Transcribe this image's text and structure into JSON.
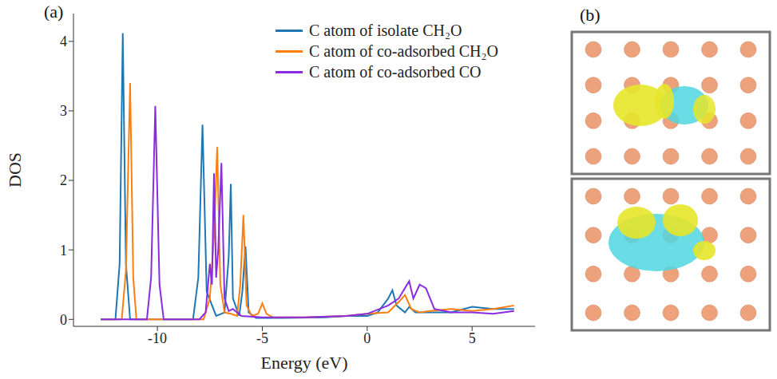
{
  "chart_data": {
    "type": "line",
    "x_label": "Energy (eV)",
    "y_label": "DOS",
    "xlim": [
      -14,
      8
    ],
    "xticks": [
      -10,
      -5,
      0,
      5
    ],
    "ylim": [
      -0.1,
      4.4
    ],
    "yticks": [
      0,
      1,
      2,
      3,
      4
    ],
    "legend": "upper right",
    "series": [
      {
        "name": "C atom of isolate CH₂O",
        "color": "#1f77b4",
        "x": [
          -12.7,
          -12.0,
          -11.8,
          -11.65,
          -11.5,
          -11.3,
          -10,
          -8.3,
          -8.05,
          -7.85,
          -7.65,
          -7.2,
          -6.8,
          -6.6,
          -6.5,
          -6.4,
          -6.1,
          -5.95,
          -5.8,
          -5.65,
          -5.3,
          -4,
          -2,
          -1,
          0,
          0.5,
          1.0,
          1.2,
          1.4,
          1.8,
          2.0,
          2.3,
          3,
          4,
          5,
          6,
          7
        ],
        "values": [
          0,
          0,
          0.8,
          4.12,
          0.8,
          0,
          0,
          0,
          0.6,
          2.8,
          0.4,
          0.05,
          0.1,
          0.9,
          1.95,
          0.3,
          0.05,
          0.4,
          1.05,
          0.1,
          0.02,
          0.02,
          0.03,
          0.05,
          0.05,
          0.1,
          0.3,
          0.42,
          0.2,
          0.1,
          0.18,
          0.1,
          0.1,
          0.1,
          0.18,
          0.15,
          0.15
        ]
      },
      {
        "name": "C atom of co-adsorbed CH₂O",
        "color": "#ff7f0e",
        "x": [
          -12.7,
          -11.7,
          -11.5,
          -11.3,
          -11.15,
          -11.0,
          -9,
          -7.8,
          -7.5,
          -7.3,
          -7.15,
          -7.0,
          -6.8,
          -6.5,
          -6.2,
          -6.05,
          -5.9,
          -5.75,
          -5.5,
          -5.2,
          -5.0,
          -4.8,
          -4.5,
          -3,
          -1,
          0,
          1.0,
          1.5,
          1.8,
          2.1,
          2.5,
          3,
          4,
          5,
          6,
          7
        ],
        "values": [
          0,
          0,
          0.7,
          3.4,
          0.6,
          0,
          0,
          0,
          0.3,
          1.2,
          2.48,
          0.5,
          0.1,
          0.08,
          0.05,
          0.5,
          1.5,
          0.2,
          0.05,
          0.08,
          0.23,
          0.08,
          0.03,
          0.03,
          0.05,
          0.08,
          0.1,
          0.25,
          0.35,
          0.15,
          0.1,
          0.12,
          0.15,
          0.12,
          0.15,
          0.2
        ]
      },
      {
        "name": "C atom of co-adsorbed CO",
        "color": "#8a2be2",
        "x": [
          -12.7,
          -10.5,
          -10.3,
          -10.1,
          -9.9,
          -9.7,
          -8,
          -7.7,
          -7.5,
          -7.4,
          -7.3,
          -7.2,
          -7.1,
          -6.95,
          -6.8,
          -6.6,
          -6.4,
          -6.0,
          -5,
          -3,
          -1,
          0,
          1.0,
          1.5,
          2.0,
          2.2,
          2.5,
          2.8,
          3.2,
          4,
          5,
          6,
          7
        ],
        "values": [
          0,
          0,
          0.6,
          3.07,
          0.5,
          0,
          0,
          0.1,
          0.8,
          0.5,
          2.1,
          0.6,
          1.0,
          2.25,
          0.3,
          0.12,
          0.15,
          0.05,
          0.03,
          0.03,
          0.05,
          0.08,
          0.2,
          0.3,
          0.55,
          0.3,
          0.5,
          0.45,
          0.15,
          0.1,
          0.1,
          0.08,
          0.12
        ]
      }
    ]
  },
  "panel_labels": [
    "(a)",
    "(b)"
  ]
}
